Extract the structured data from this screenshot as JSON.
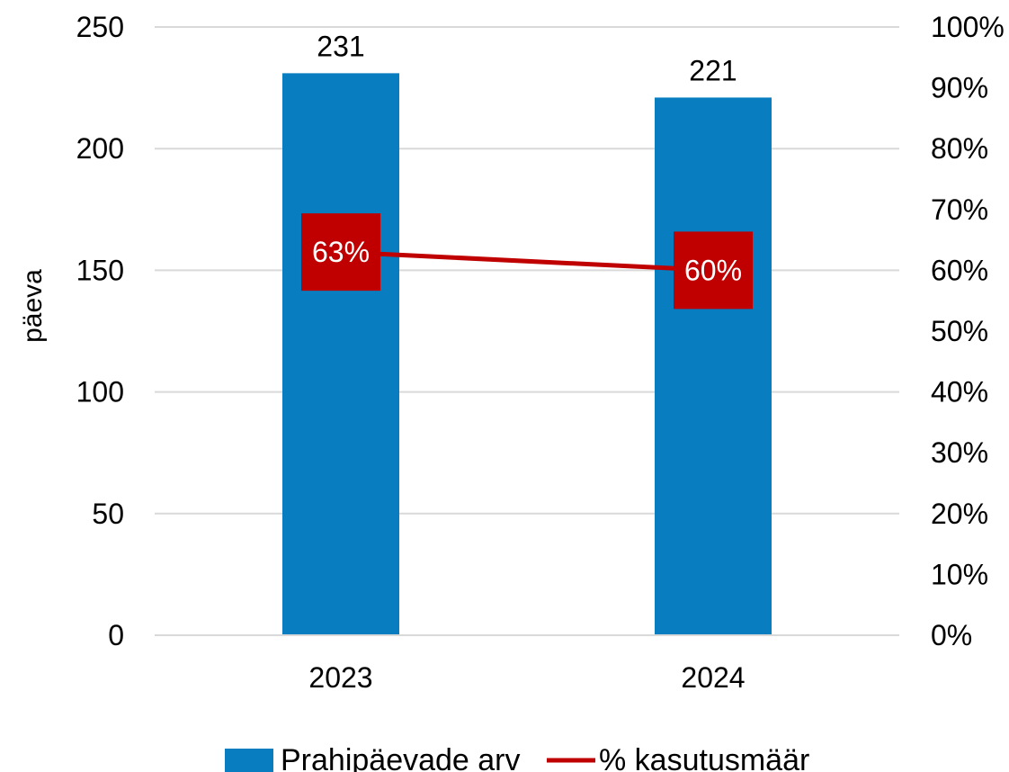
{
  "chart_data": {
    "type": "bar",
    "categories": [
      "2023",
      "2024"
    ],
    "series": [
      {
        "name": "Prahipäevade arv",
        "type": "bar",
        "axis": "left",
        "values": [
          231,
          221
        ],
        "labels": [
          "231",
          "221"
        ],
        "color": "#087DC0"
      },
      {
        "name": "% kasutusmäär",
        "type": "line",
        "axis": "right",
        "values": [
          0.63,
          0.6
        ],
        "labels": [
          "63%",
          "60%"
        ],
        "color": "#C00000"
      }
    ],
    "ylabel": "päeva",
    "ylim": [
      0,
      250
    ],
    "yticks": [
      "0",
      "50",
      "100",
      "150",
      "200",
      "250"
    ],
    "y2lim": [
      0,
      1
    ],
    "y2ticks": [
      "0%",
      "10%",
      "20%",
      "30%",
      "40%",
      "50%",
      "60%",
      "70%",
      "80%",
      "90%",
      "100%"
    ],
    "grid": true,
    "legend": "bottom",
    "grid_color": "#D9D9D9"
  }
}
